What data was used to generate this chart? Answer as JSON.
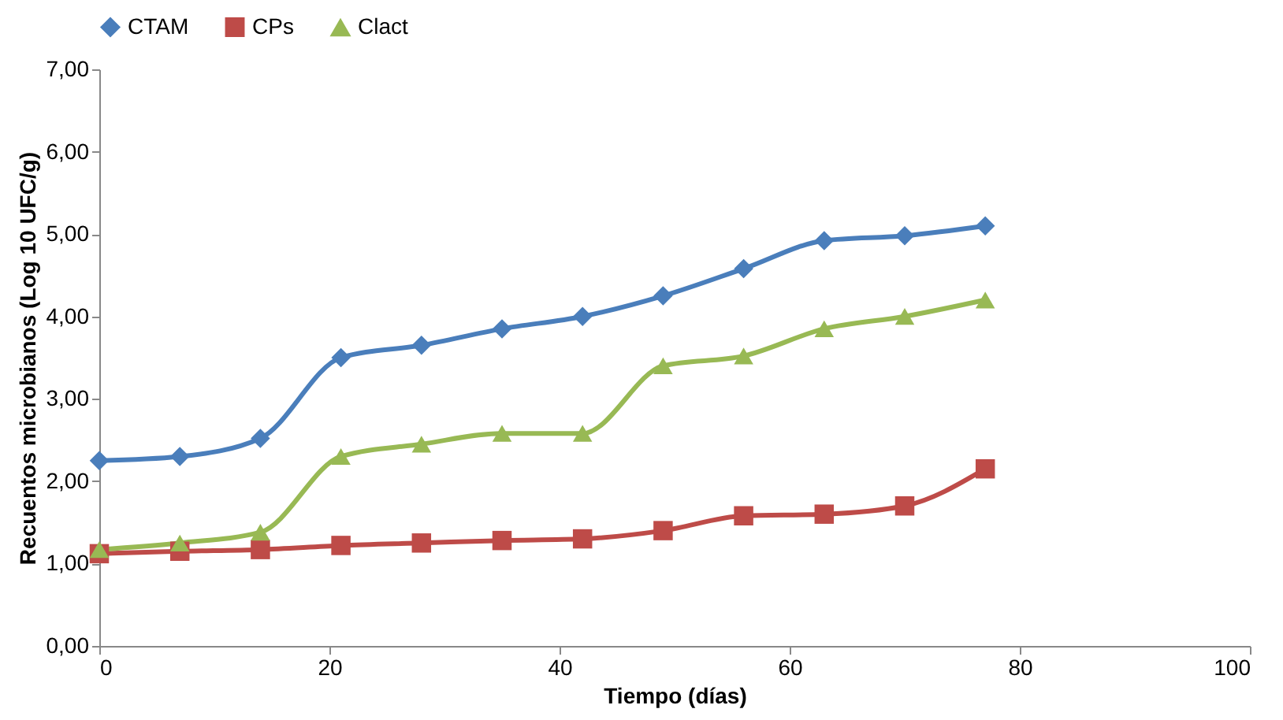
{
  "chart_data": {
    "type": "line",
    "xlabel": "Tiempo (días)",
    "ylabel": "Recuentos microbianos  (Log 10 UFC/g)",
    "x": [
      0,
      7,
      14,
      21,
      28,
      35,
      42,
      49,
      56,
      63,
      70,
      77
    ],
    "series": [
      {
        "name": "CTAM",
        "color": "#4a7ebb",
        "marker": "diamond",
        "values": [
          2.25,
          2.3,
          2.52,
          3.5,
          3.65,
          3.85,
          4.0,
          4.25,
          4.58,
          4.92,
          4.98,
          5.1
        ]
      },
      {
        "name": "CPs",
        "color": "#be4b48",
        "marker": "square",
        "values": [
          1.12,
          1.15,
          1.17,
          1.22,
          1.25,
          1.28,
          1.3,
          1.4,
          1.58,
          1.6,
          1.7,
          2.15
        ]
      },
      {
        "name": "Clact",
        "color": "#98b954",
        "marker": "triangle",
        "values": [
          1.17,
          1.25,
          1.38,
          2.3,
          2.45,
          2.58,
          2.58,
          3.4,
          3.52,
          3.85,
          4.0,
          4.2
        ]
      }
    ],
    "xlim": [
      0,
      100
    ],
    "xticks": [
      0,
      20,
      40,
      60,
      80,
      100
    ],
    "ylim": [
      0,
      7
    ],
    "yticks": [
      {
        "value": 0,
        "label": "0,00"
      },
      {
        "value": 1,
        "label": "1,00"
      },
      {
        "value": 2,
        "label": "2,00"
      },
      {
        "value": 3,
        "label": "3,00"
      },
      {
        "value": 4,
        "label": "4,00"
      },
      {
        "value": 5,
        "label": "5,00"
      },
      {
        "value": 6,
        "label": "6,00"
      },
      {
        "value": 7,
        "label": "7,00"
      }
    ],
    "legend": "top",
    "grid": false
  }
}
